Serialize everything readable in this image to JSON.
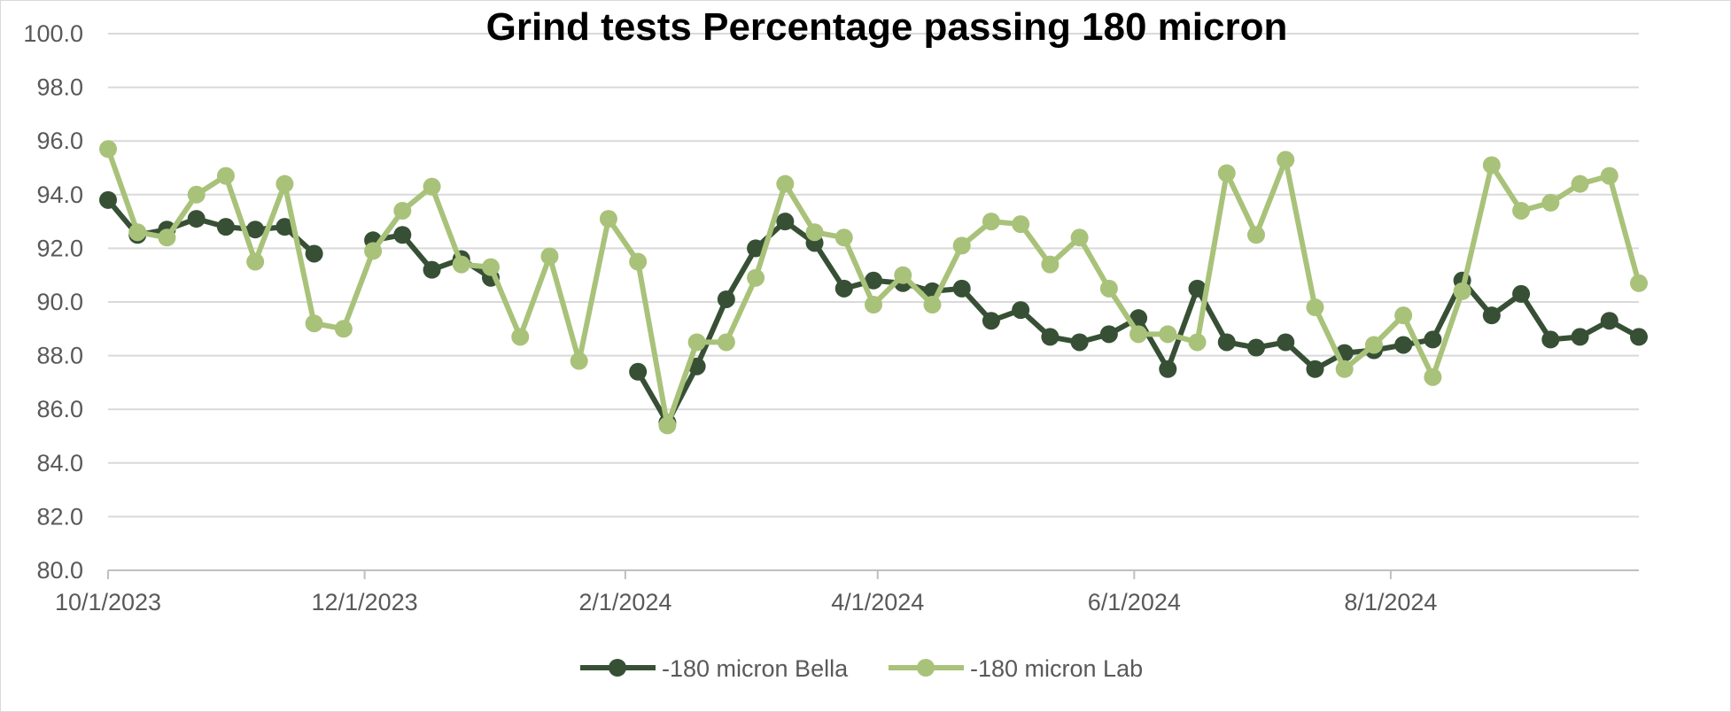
{
  "chart_data": {
    "type": "line",
    "title": "Grind tests Percentage passing 180 micron",
    "xlabel": "",
    "ylabel": "",
    "ylim": [
      80,
      100
    ],
    "y_ticks": [
      "80.0",
      "82.0",
      "84.0",
      "86.0",
      "88.0",
      "90.0",
      "92.0",
      "94.0",
      "96.0",
      "98.0",
      "100.0"
    ],
    "x_tick_labels": [
      "10/1/2023",
      "12/1/2023",
      "2/1/2024",
      "4/1/2024",
      "6/1/2024",
      "8/1/2024"
    ],
    "x_tick_positions": [
      0,
      8.714,
      17.571,
      26.143,
      34.857,
      43.571
    ],
    "x_range": [
      0,
      52
    ],
    "grid": true,
    "legend_position": "bottom",
    "series": [
      {
        "name": "-180 micron Bella",
        "color": "#375035",
        "values": [
          93.8,
          92.5,
          92.7,
          93.1,
          92.8,
          92.7,
          92.8,
          91.8,
          null,
          92.3,
          92.5,
          91.2,
          91.6,
          90.9,
          null,
          null,
          null,
          null,
          87.4,
          85.5,
          87.6,
          90.1,
          92.0,
          93.0,
          92.2,
          90.5,
          90.8,
          90.7,
          90.4,
          90.5,
          89.3,
          89.7,
          88.7,
          88.5,
          88.8,
          89.4,
          87.5,
          90.5,
          88.5,
          88.3,
          88.5,
          87.5,
          88.1,
          88.2,
          88.4,
          88.6,
          90.8,
          89.5,
          90.3,
          88.6,
          88.7,
          89.3,
          88.7
        ]
      },
      {
        "name": "-180 micron Lab",
        "color": "#a9c27a",
        "values": [
          95.7,
          92.6,
          92.4,
          94.0,
          94.7,
          91.5,
          94.4,
          89.2,
          89.0,
          91.9,
          93.4,
          94.3,
          91.4,
          91.3,
          88.7,
          91.7,
          87.8,
          93.1,
          91.5,
          85.4,
          88.5,
          88.5,
          90.9,
          94.4,
          92.6,
          92.4,
          89.9,
          91.0,
          89.9,
          92.1,
          93.0,
          92.9,
          91.4,
          92.4,
          90.5,
          88.8,
          88.8,
          88.5,
          94.8,
          92.5,
          95.3,
          89.8,
          87.5,
          88.4,
          89.5,
          87.2,
          90.4,
          95.1,
          93.4,
          93.7,
          94.4,
          94.7,
          90.7
        ]
      }
    ]
  }
}
